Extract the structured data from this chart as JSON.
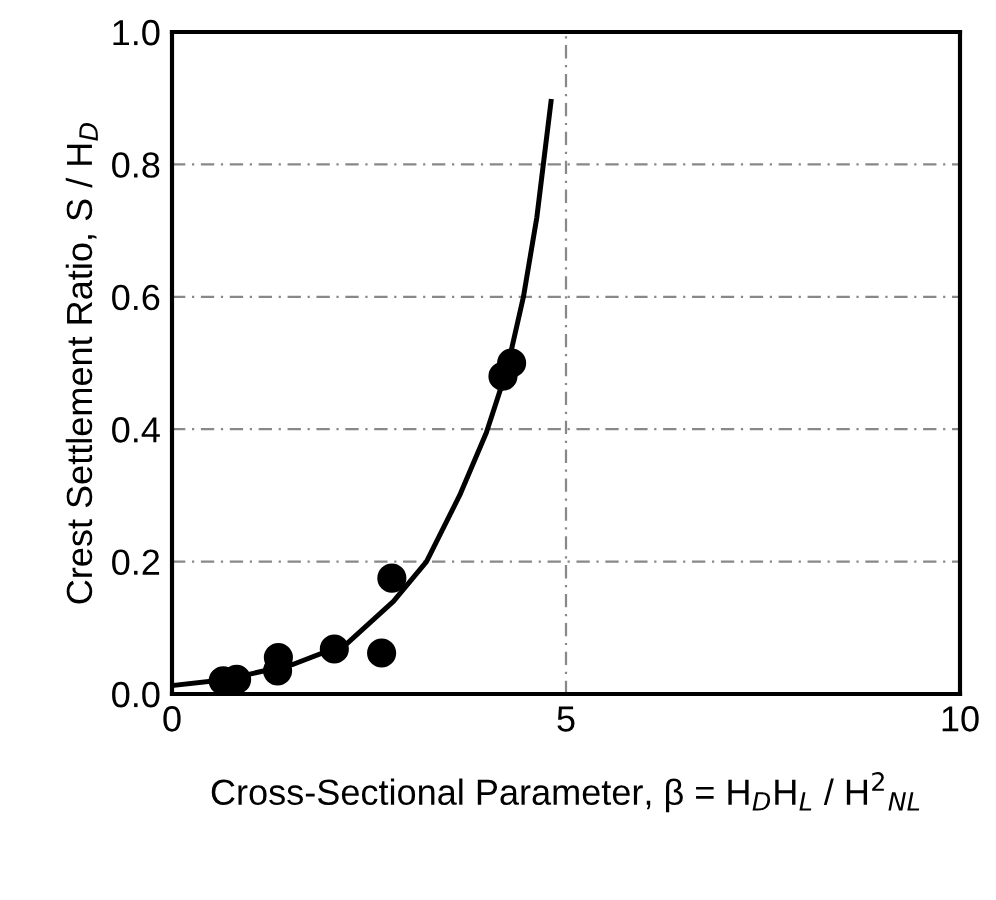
{
  "chart_data": {
    "type": "scatter",
    "xlabel": "Cross-Sectional Parameter, β = H$_{D}$H$_{L}$ / H$^{2}$$_{NL}$",
    "ylabel": "Crest Settlement Ratio, S / H$_{D}$",
    "xlim": [
      0,
      10
    ],
    "ylim": [
      0,
      1.0
    ],
    "xticks": [
      0,
      5,
      10
    ],
    "yticks": [
      {
        "value": 0,
        "label": "0.0"
      },
      0.2,
      0.4,
      0.6,
      0.8,
      {
        "value": 1.0,
        "label": "1.0"
      }
    ],
    "grid": true,
    "series": [
      {
        "marker": "circle",
        "color": "#000000",
        "x": [
          0.65,
          0.82,
          1.34,
          1.35,
          2.06,
          2.66,
          2.79,
          4.2,
          4.31
        ],
        "values": [
          0.02,
          0.022,
          0.035,
          0.055,
          0.068,
          0.062,
          0.175,
          0.48,
          0.5
        ]
      },
      {
        "type": "line",
        "marker": "none",
        "color": "#000000",
        "x": [
          0.02,
          0.69,
          1.54,
          2.22,
          2.81,
          3.23,
          3.65,
          3.99,
          4.25,
          4.46,
          4.63,
          4.81
        ],
        "values": [
          0.013,
          0.022,
          0.045,
          0.076,
          0.14,
          0.2,
          0.3,
          0.395,
          0.49,
          0.6,
          0.72,
          0.895
        ]
      }
    ]
  }
}
